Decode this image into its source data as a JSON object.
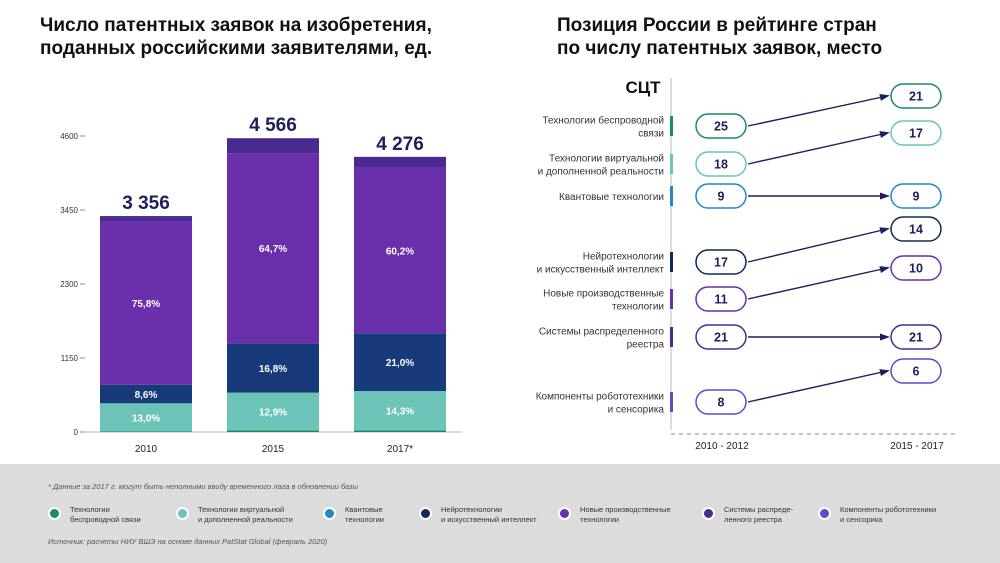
{
  "left_title": [
    "Число патентных заявок на изобретения,",
    "поданных российскими заявителями, ед."
  ],
  "right_title": [
    "Позиция России в рейтинге стран",
    "по числу патентных заявок, место"
  ],
  "colors": {
    "wireless": "#1a8a6a",
    "vr": "#6cc3b8",
    "quantum": "#1e8bc3",
    "neuro": "#0d2a5c",
    "manufacturing": "#6a2fab",
    "distributed": "#4a2a90",
    "robotics": "#5b4dc8",
    "bar_main": "#6a2fab",
    "bar_dark": "#173a7a",
    "bar_teal": "#6cc3b8",
    "bar_top": "#4a2a90",
    "total_text": "#1d1f5e"
  },
  "chart_data": [
    {
      "type": "bar",
      "stacked": true,
      "categories": [
        "2010",
        "2015",
        "2017*"
      ],
      "totals": [
        "3 356",
        "4 566",
        "4 276"
      ],
      "total_values": [
        3356,
        4566,
        4276
      ],
      "yticks": [
        "0",
        "1150",
        "2300",
        "3450",
        "4600"
      ],
      "ylim": [
        0,
        4600
      ],
      "segments": [
        {
          "key": "wireless",
          "values": [
            0.3,
            0.5,
            0.6
          ],
          "label": [
            "",
            "",
            ""
          ]
        },
        {
          "key": "bar_teal",
          "values": [
            13.0,
            12.9,
            14.3
          ],
          "label": [
            "13,0%",
            "12,9%",
            "14,3%"
          ]
        },
        {
          "key": "bar_dark",
          "values": [
            8.6,
            16.8,
            21.0
          ],
          "label": [
            "8,6%",
            "16,8%",
            "21,0%"
          ]
        },
        {
          "key": "bar_main",
          "values": [
            75.8,
            64.7,
            60.2
          ],
          "label": [
            "75,8%",
            "64,7%",
            "60,2%"
          ]
        },
        {
          "key": "bar_top",
          "values": [
            2.3,
            5.1,
            3.9
          ],
          "label": [
            "",
            "",
            ""
          ]
        }
      ]
    },
    {
      "type": "slope",
      "heading": "СЦТ",
      "periods": [
        "2010 - 2012",
        "2015 - 2017"
      ],
      "rows": [
        {
          "key": "wireless",
          "label": [
            "Технологии беспроводной",
            "связи"
          ],
          "from": 25,
          "to": 21
        },
        {
          "key": "vr",
          "label": [
            "Технологии виртуальной",
            "и дополненной реальности"
          ],
          "from": 18,
          "to": 17
        },
        {
          "key": "quantum",
          "label": [
            "Квантовые технологии"
          ],
          "from": 9,
          "to": 9
        },
        {
          "key": "neuro",
          "label": [
            "Нейротехнологии",
            "и искусственный интеллект"
          ],
          "from": 17,
          "to": 14
        },
        {
          "key": "manufacturing",
          "label": [
            "Новые производственные",
            "технологии"
          ],
          "from": 11,
          "to": 10
        },
        {
          "key": "distributed",
          "label": [
            "Системы распределенного",
            "реестра"
          ],
          "from": 21,
          "to": 21
        },
        {
          "key": "robotics",
          "label": [
            "Компоненты робототехники",
            "и сенсорика"
          ],
          "from": 8,
          "to": 6
        }
      ]
    }
  ],
  "footer": {
    "footnote": "* Данные за 2017 г. могут быть неполными ввиду временного лага в обновлении базы",
    "source": "Источник: расчеты НИУ ВШЭ на основе данных PatStat Global (февраль 2020)",
    "legend": [
      {
        "key": "wireless",
        "lines": [
          "Технологии",
          "беспроводной связи"
        ]
      },
      {
        "key": "vr",
        "lines": [
          "Технологии виртуальной",
          "и дополненной реальности"
        ]
      },
      {
        "key": "quantum",
        "lines": [
          "Квантовые",
          "технологии"
        ]
      },
      {
        "key": "neuro",
        "lines": [
          "Нейротехнологии",
          "и искусственный интеллект"
        ]
      },
      {
        "key": "manufacturing",
        "lines": [
          "Новые производственные",
          "технологии"
        ]
      },
      {
        "key": "distributed",
        "lines": [
          "Системы распреде-",
          "ленного реестра"
        ]
      },
      {
        "key": "robotics",
        "lines": [
          "Компоненты робототехники",
          "и сенсорика"
        ]
      }
    ]
  }
}
